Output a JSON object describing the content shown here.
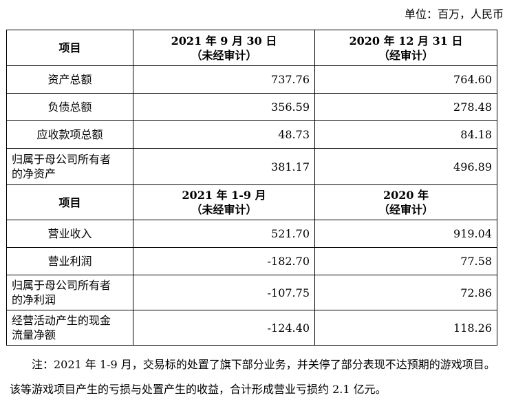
{
  "unit_label": "单位：百万，人民币",
  "balance_header": {
    "item": "项目",
    "col1_line1": "2021 年 9 月 30 日",
    "col1_line2": "（未经审计）",
    "col2_line1": "2020 年 12 月 31 日",
    "col2_line2": "（经审计）"
  },
  "balance_rows": [
    {
      "label": "资产总额",
      "v1": "737.76",
      "v2": "764.60"
    },
    {
      "label": "负债总额",
      "v1": "356.59",
      "v2": "278.48"
    },
    {
      "label": "应收款项总额",
      "v1": "48.73",
      "v2": "84.18"
    },
    {
      "label_line1": "归属于母公司所有者",
      "label_line2": "的净资产",
      "v1": "381.17",
      "v2": "496.89"
    }
  ],
  "income_header": {
    "item": "项目",
    "col1_line1": "2021 年 1-9 月",
    "col1_line2": "（未经审计）",
    "col2_line1": "2020 年",
    "col2_line2": "（经审计）"
  },
  "income_rows": [
    {
      "label": "营业收入",
      "v1": "521.70",
      "v2": "919.04"
    },
    {
      "label": "营业利润",
      "v1": "-182.70",
      "v2": "77.58"
    },
    {
      "label_line1": "归属于母公司所有者",
      "label_line2": "的净利润",
      "v1": "-107.75",
      "v2": "72.86"
    },
    {
      "label_line1": "经营活动产生的现金",
      "label_line2": "流量净额",
      "v1": "-124.40",
      "v2": "118.26"
    }
  ],
  "note": "注：2021 年 1-9 月，交易标的处置了旗下部分业务，并关停了部分表现不达预期的游戏项目。该等游戏项目产生的亏损与处置产生的收益，合计形成营业亏损约 2.1 亿元。"
}
